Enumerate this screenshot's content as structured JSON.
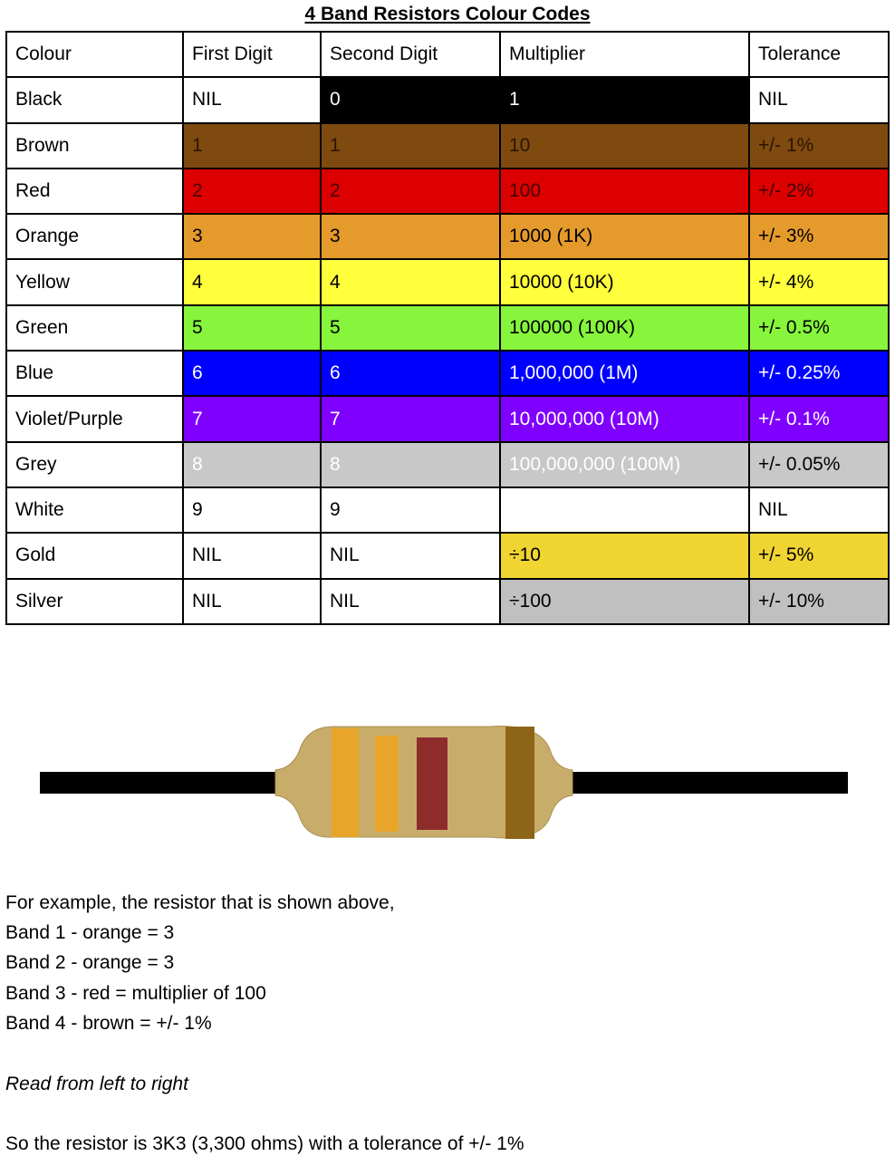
{
  "header": {
    "title": "4 Band Resistors Colour Codes"
  },
  "table": {
    "columns": [
      "Colour",
      "First Digit",
      "Second Digit",
      "Multiplier",
      "Tolerance"
    ],
    "rows": [
      [
        "Black",
        "NIL",
        "0",
        "1",
        "NIL"
      ],
      [
        "Brown",
        "1",
        "1",
        "10",
        "+/- 1%"
      ],
      [
        "Red",
        "2",
        "2",
        "100",
        "+/- 2%"
      ],
      [
        "Orange",
        "3",
        "3",
        "1000 (1K)",
        "+/- 3%"
      ],
      [
        "Yellow",
        "4",
        "4",
        "10000 (10K)",
        "+/- 4%"
      ],
      [
        "Green",
        "5",
        "5",
        "100000 (100K)",
        "+/- 0.5%"
      ],
      [
        "Blue",
        "6",
        "6",
        "1,000,000 (1M)",
        "+/- 0.25%"
      ],
      [
        "Violet/Purple",
        "7",
        "7",
        "10,000,000 (10M)",
        "+/- 0.1%"
      ],
      [
        "Grey",
        "8",
        "8",
        "100,000,000 (100M)",
        "+/- 0.05%"
      ],
      [
        "White",
        "9",
        "9",
        "",
        "NIL"
      ],
      [
        "Gold",
        "NIL",
        "NIL",
        "÷10",
        "+/- 5%"
      ],
      [
        "Silver",
        "NIL",
        "NIL",
        "÷100",
        "+/- 10%"
      ]
    ]
  },
  "text": {
    "lines": [
      "For example, the resistor that is shown above,",
      "Band 1 - orange = 3",
      "Band 2 - orange = 3",
      "Band 3 - red = multiplier of 100",
      "Band 4 - brown = +/- 1%"
    ],
    "note": "Read from left to right",
    "conclusion": "So the resistor is 3K3 (3,300 ohms) with a tolerance of +/- 1%"
  }
}
